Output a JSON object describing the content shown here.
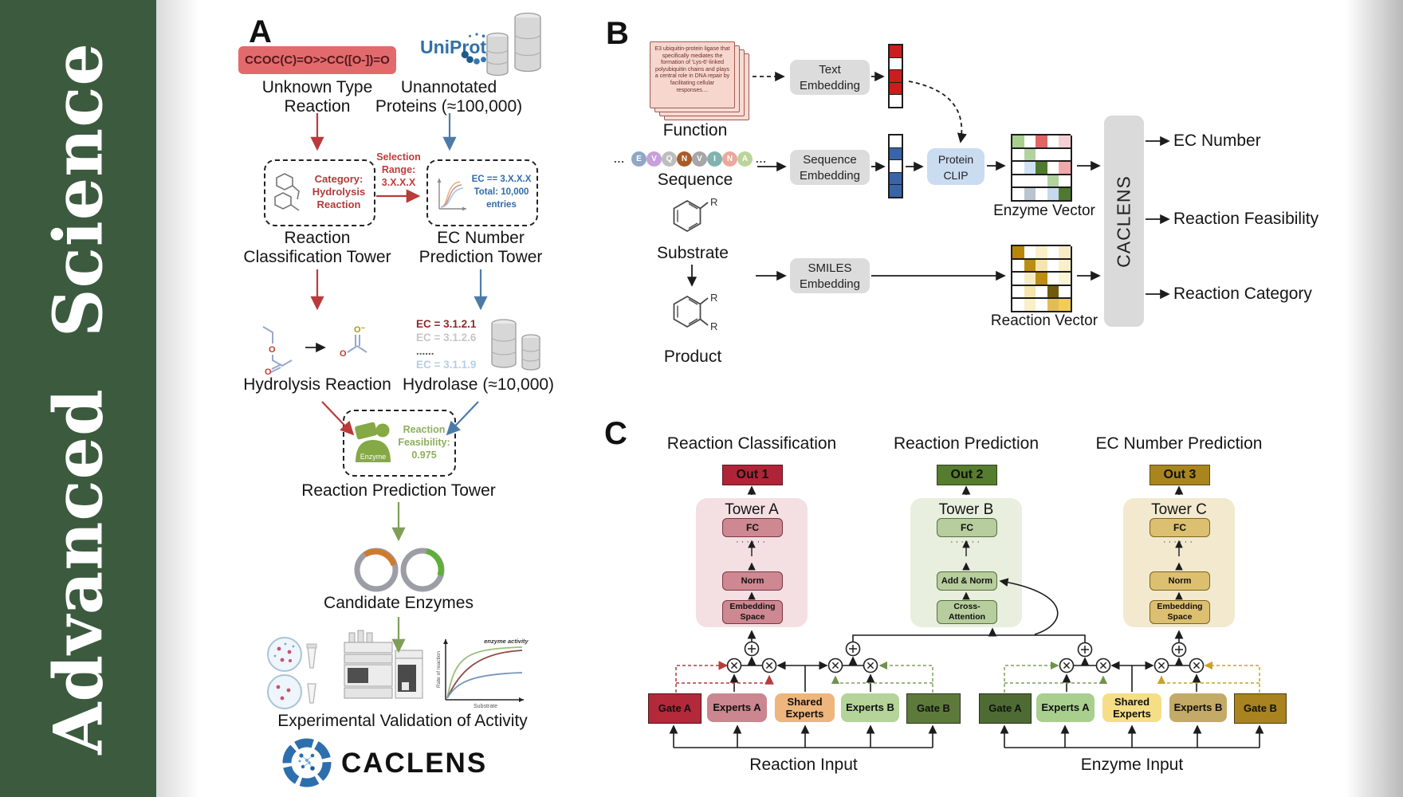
{
  "sidebar": {
    "journal": "Advanced Science",
    "bg": "#3b5a3e"
  },
  "panelA": {
    "label": "A",
    "smiles": "CCOC(C)=O>>CC([O-])=O",
    "unknown_lines": [
      "Unknown Type",
      "Reaction"
    ],
    "uniprot": "UniProt",
    "unannotated_lines": [
      "Unannotated",
      "Proteins (≈100,000)"
    ],
    "category_lines": [
      "Category:",
      "Hydrolysis",
      "Reaction"
    ],
    "selection_lines": [
      "Selection",
      "Range:",
      "3.X.X.X"
    ],
    "ec_box_lines": [
      "EC == 3.X.X.X",
      "Total: 10,000",
      "entries"
    ],
    "tower1_lines": [
      "Reaction",
      "Classification Tower"
    ],
    "tower2_lines": [
      "EC Number",
      "Prediction Tower"
    ],
    "hydrolysis_label": "Hydrolysis Reaction",
    "ec_list": [
      {
        "text": "EC = 3.1.2.1",
        "color": "#8b2b2b"
      },
      {
        "text": "EC = 3.1.2.6",
        "color": "#c6c6c6"
      },
      {
        "text": "......",
        "color": "#555555"
      },
      {
        "text": "EC = 3.1.1.9",
        "color": "#b7cde6"
      }
    ],
    "hydrolase_label": "Hydrolase (≈10,000)",
    "enzyme_label": "Enzyme",
    "feasibility_lines": [
      "Reaction",
      "Feasibility:",
      "0.975"
    ],
    "tower3_label": "Reaction Prediction Tower",
    "candidate_label": "Candidate Enzymes",
    "activity_plot": {
      "curve_label": "enzyme activity",
      "ylabel": "Rate of reaction",
      "xlabel": "Substrate"
    },
    "experimental_label": "Experimental Validation of Activity",
    "brand": "CACLENS"
  },
  "panelB": {
    "label": "B",
    "function_card_text": "E3 ubiquitin-protein ligase that specifically mediates the formation of 'Lys-6'-linked polyubiquitin chains and plays a central role in DNA repair by facilitating cellular responses....",
    "function_label": "Function",
    "sequence_label": "Sequence",
    "ellipsis": "...",
    "residues": [
      {
        "l": "E",
        "c": "#8fa7c6"
      },
      {
        "l": "V",
        "c": "#c79fdc"
      },
      {
        "l": "Q",
        "c": "#bdbdbd"
      },
      {
        "l": "N",
        "c": "#a85b28"
      },
      {
        "l": "V",
        "c": "#a6a6a6"
      },
      {
        "l": "I",
        "c": "#80b3b0"
      },
      {
        "l": "N",
        "c": "#eba89e"
      },
      {
        "l": "A",
        "c": "#bcd49a"
      }
    ],
    "substrate_label": "Substrate",
    "product_label": "Product",
    "r_label": "R",
    "text_embedding_lines": [
      "Text",
      "Embedding"
    ],
    "sequence_embedding_lines": [
      "Sequence",
      "Embedding"
    ],
    "smiles_embedding_lines": [
      "SMILES",
      "Embedding"
    ],
    "protein_clip_lines": [
      "Protein",
      "CLIP"
    ],
    "text_vector_cells": [
      "#c81e1e",
      "#ffffff",
      "#c81e1e",
      "#c81e1e",
      "#ffffff"
    ],
    "seq_vector_cells": [
      "#ffffff",
      "#3a64a8",
      "#ffffff",
      "#3a64a8",
      "#3a64a8"
    ],
    "enzyme_vector": {
      "label": "Enzyme Vector",
      "cells": [
        "#a8cf8e",
        "#ffffff",
        "#e06666",
        "#ffffff",
        "#f6cfd4",
        "#ffffff",
        "#b2d3a0",
        "#ffffff",
        "#ffffff",
        "#ffffff",
        "#ffffff",
        "#cfe2f3",
        "#4f7a2e",
        "#ffffff",
        "#f0a8ab",
        "#ffffff",
        "#ffffff",
        "#ffffff",
        "#b2d3a0",
        "#ffffff",
        "#ffffff",
        "#b9c4cf",
        "#ffffff",
        "#c5d9ef",
        "#4f7a2e"
      ]
    },
    "reaction_vector": {
      "label": "Reaction Vector",
      "cells": [
        "#b8860b",
        "#ffffff",
        "#f9efc8",
        "#ffffff",
        "#f7ecc4",
        "#ffffff",
        "#bb8d12",
        "#f4e6ae",
        "#ffffff",
        "#f9efc8",
        "#ffffff",
        "#f7ecc4",
        "#bb8d12",
        "#ffffff",
        "#fbf3d6",
        "#ffffff",
        "#f4e6ae",
        "#ffffff",
        "#6f5a10",
        "#ffffff",
        "#ffffff",
        "#f9efc8",
        "#ffffff",
        "#e2bd55",
        "#f2cd52"
      ]
    },
    "caclens": "CACLENS",
    "outputs": [
      "EC Number",
      "Reaction Feasibility",
      "Reaction Category"
    ]
  },
  "panelC": {
    "label": "C",
    "headings": [
      "Reaction Classification",
      "Reaction Prediction",
      "EC Number Prediction"
    ],
    "outs": [
      {
        "label": "Out 1",
        "color": "#b12437"
      },
      {
        "label": "Out 2",
        "color": "#567c2d"
      },
      {
        "label": "Out 3",
        "color": "#a9851e"
      }
    ],
    "towers": [
      {
        "name": "Tower A",
        "fc": "FC",
        "dots": "······",
        "mid": "Norm",
        "bottom_lines": [
          "Embedding",
          "Space"
        ]
      },
      {
        "name": "Tower B",
        "fc": "FC",
        "dots": "······",
        "mid": "Add & Norm",
        "bottom_lines": [
          "Cross-",
          "Attention"
        ]
      },
      {
        "name": "Tower C",
        "fc": "FC",
        "dots": "······",
        "mid": "Norm",
        "bottom_lines": [
          "Embedding",
          "Space"
        ]
      }
    ],
    "moe_left": {
      "boxes": [
        {
          "label": "Gate A",
          "color": "#b2293a"
        },
        {
          "label": "Experts A",
          "color": "#cb8690"
        },
        {
          "label": "Shared Experts",
          "color": "#eeb57c"
        },
        {
          "label": "Experts B",
          "color": "#b4d49a"
        },
        {
          "label": "Gate B",
          "color": "#5d7a3b"
        }
      ],
      "input": "Reaction Input"
    },
    "moe_right": {
      "boxes": [
        {
          "label": "Gate A",
          "color": "#4e6b33"
        },
        {
          "label": "Experts A",
          "color": "#a9cf8f"
        },
        {
          "label": "Shared Experts",
          "color": "#f6de86"
        },
        {
          "label": "Experts B",
          "color": "#c3aa66"
        },
        {
          "label": "Gate B",
          "color": "#a8831f"
        }
      ],
      "input": "Enzyme Input"
    }
  }
}
